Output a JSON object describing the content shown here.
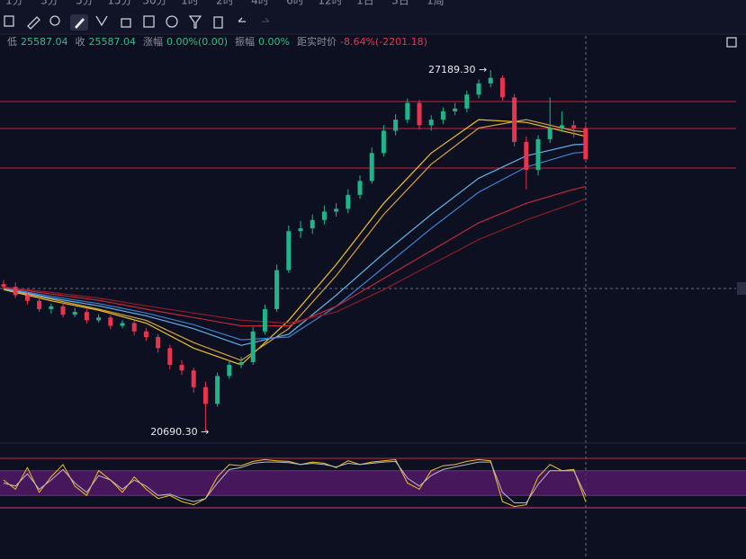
{
  "toolbar": {
    "timeframes": [
      "1分",
      "3分",
      "5分",
      "15分",
      "30分",
      "1时",
      "2时",
      "4时",
      "6时",
      "12时",
      "1日",
      "3日",
      "1周"
    ]
  },
  "info": [
    {
      "label": "低",
      "value": "25587.04"
    },
    {
      "label": "收",
      "value": "25587.04"
    },
    {
      "label": "涨幅",
      "value": "0.00%(0.00)"
    },
    {
      "label": "振幅",
      "value": "0.00%"
    },
    {
      "label": "距实时价",
      "value": "-8.64%(-2201.18)"
    }
  ],
  "chart_data": {
    "type": "candlestick",
    "ylim": [
      20513,
      27802
    ],
    "up_color": "#1fb48a",
    "down_color": "#e8344e",
    "candles": [
      [
        23350,
        23420,
        23250,
        23300
      ],
      [
        23300,
        23380,
        23100,
        23150
      ],
      [
        23150,
        23200,
        22980,
        23050
      ],
      [
        23050,
        23120,
        22850,
        22900
      ],
      [
        22900,
        23000,
        22820,
        22950
      ],
      [
        22950,
        23010,
        22750,
        22800
      ],
      [
        22800,
        22920,
        22760,
        22850
      ],
      [
        22850,
        22900,
        22640,
        22700
      ],
      [
        22700,
        22810,
        22660,
        22750
      ],
      [
        22750,
        22790,
        22540,
        22600
      ],
      [
        22600,
        22700,
        22560,
        22650
      ],
      [
        22650,
        22690,
        22430,
        22500
      ],
      [
        22500,
        22560,
        22330,
        22400
      ],
      [
        22400,
        22450,
        22120,
        22200
      ],
      [
        22200,
        22260,
        21820,
        21900
      ],
      [
        21900,
        21980,
        21720,
        21800
      ],
      [
        21800,
        21850,
        21400,
        21500
      ],
      [
        21500,
        21600,
        20690.3,
        21200
      ],
      [
        21200,
        21760,
        21150,
        21700
      ],
      [
        21700,
        21980,
        21650,
        21900
      ],
      [
        21900,
        22050,
        21840,
        21950
      ],
      [
        21950,
        22580,
        21900,
        22500
      ],
      [
        22500,
        22980,
        22440,
        22900
      ],
      [
        22900,
        23700,
        22850,
        23600
      ],
      [
        23600,
        24400,
        23550,
        24300
      ],
      [
        24300,
        24480,
        24180,
        24350
      ],
      [
        24350,
        24600,
        24250,
        24500
      ],
      [
        24500,
        24760,
        24420,
        24650
      ],
      [
        24650,
        24800,
        24560,
        24700
      ],
      [
        24700,
        25050,
        24620,
        24950
      ],
      [
        24950,
        25300,
        24880,
        25200
      ],
      [
        25200,
        25800,
        25150,
        25700
      ],
      [
        25700,
        26200,
        25640,
        26100
      ],
      [
        26100,
        26400,
        26020,
        26300
      ],
      [
        26300,
        26680,
        26240,
        26600
      ],
      [
        26600,
        26650,
        26120,
        26200
      ],
      [
        26200,
        26380,
        26100,
        26300
      ],
      [
        26300,
        26520,
        26220,
        26450
      ],
      [
        26450,
        26600,
        26380,
        26500
      ],
      [
        26500,
        26820,
        26430,
        26750
      ],
      [
        26750,
        27020,
        26680,
        26950
      ],
      [
        26950,
        27189.3,
        26880,
        27050
      ],
      [
        27050,
        27100,
        26640,
        26700
      ],
      [
        26700,
        26760,
        25820,
        25900
      ],
      [
        25900,
        26000,
        25050,
        25400
      ],
      [
        25400,
        26020,
        25300,
        25950
      ],
      [
        25950,
        26700,
        25880,
        26150
      ],
      [
        26150,
        26450,
        26080,
        26200
      ],
      [
        26200,
        26280,
        25980,
        26150
      ],
      [
        26150,
        26200,
        25587.04,
        25587.04
      ]
    ],
    "annotations": [
      "27189.30 →",
      "20690.30 →"
    ],
    "levels": [
      26625,
      26141,
      25432
    ],
    "level_color": "#d0213a",
    "ma_x": [
      0,
      4,
      8,
      12,
      16,
      20,
      24,
      28,
      32,
      36,
      40,
      44,
      48,
      49
    ],
    "series": [
      {
        "color": "#f2c21b",
        "values": [
          23250,
          23050,
          22880,
          22650,
          22200,
          21900,
          22700,
          23700,
          24800,
          25700,
          26300,
          26250,
          26050,
          26000
        ]
      },
      {
        "color": "#d9a43a",
        "values": [
          23260,
          23080,
          22900,
          22700,
          22300,
          21980,
          22550,
          23500,
          24600,
          25500,
          26150,
          26300,
          26100,
          26080
        ]
      },
      {
        "color": "#5fb3e8",
        "values": [
          23270,
          23100,
          22960,
          22780,
          22550,
          22250,
          22450,
          23150,
          23900,
          24600,
          25250,
          25650,
          25850,
          25860
        ]
      },
      {
        "color": "#3f7fd0",
        "values": [
          23280,
          23130,
          23000,
          22830,
          22620,
          22350,
          22400,
          22950,
          23650,
          24350,
          25000,
          25450,
          25700,
          25720
        ]
      },
      {
        "color": "#c0283a",
        "values": [
          23290,
          23170,
          23060,
          22900,
          22750,
          22600,
          22600,
          22950,
          23450,
          23950,
          24450,
          24800,
          25050,
          25100
        ]
      },
      {
        "color": "#8e1b2b",
        "values": [
          23300,
          23200,
          23100,
          22960,
          22830,
          22700,
          22650,
          22850,
          23250,
          23700,
          24150,
          24500,
          24800,
          24880
        ]
      }
    ],
    "oscillator": {
      "ylim": [
        0,
        100
      ],
      "levels": [
        90,
        70,
        30,
        10
      ],
      "level_colors": [
        "#c0283a",
        "#7a2a8a",
        "#7a2a8a",
        "#d0408a"
      ],
      "band_color": "#5a1a6e",
      "series": [
        {
          "color": "#f2c21b",
          "values": [
            55,
            40,
            75,
            35,
            60,
            80,
            45,
            30,
            70,
            55,
            35,
            60,
            40,
            25,
            30,
            20,
            15,
            25,
            60,
            80,
            78,
            85,
            88,
            86,
            85,
            80,
            84,
            82,
            75,
            86,
            80,
            84,
            86,
            88,
            50,
            40,
            70,
            78,
            80,
            85,
            88,
            86,
            20,
            12,
            15,
            60,
            80,
            70,
            72,
            20
          ]
        },
        {
          "color": "#b9b9c9",
          "values": [
            50,
            45,
            65,
            40,
            55,
            72,
            50,
            35,
            62,
            55,
            40,
            55,
            45,
            30,
            32,
            25,
            20,
            25,
            50,
            72,
            75,
            82,
            84,
            84,
            83,
            80,
            82,
            80,
            76,
            82,
            80,
            82,
            84,
            85,
            58,
            45,
            62,
            72,
            76,
            80,
            84,
            84,
            35,
            18,
            18,
            48,
            70,
            70,
            70,
            30
          ]
        }
      ]
    }
  }
}
